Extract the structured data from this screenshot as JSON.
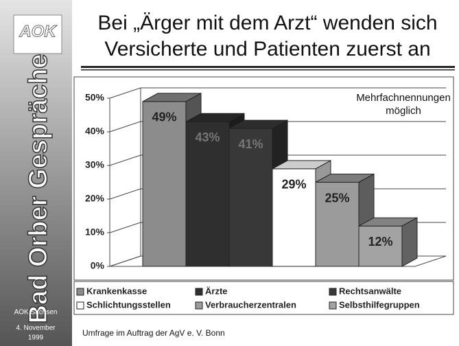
{
  "sidebar": {
    "logo": "AOK",
    "vertical_title": "Bad Orber Gespräche",
    "org": "AOK Sachsen",
    "date": [
      "4. November",
      "1999"
    ]
  },
  "title": [
    "Bei „Ärger mit dem Arzt“ wenden sich",
    "Versicherte und Patienten zuerst an"
  ],
  "footer": "Umfrage im Auftrag der AgV e. V. Bonn",
  "chart_data": {
    "type": "bar3d",
    "annotation": [
      "Mehrfachnennungen",
      "möglich"
    ],
    "categories": [
      "Krankenkasse",
      "Ärzte",
      "Rechtsanwälte",
      "Schlichtungsstellen",
      "Verbraucherzentralen",
      "Selbsthilfegruppen"
    ],
    "values": [
      49,
      43,
      41,
      29,
      25,
      12
    ],
    "value_labels": [
      "49%",
      "43%",
      "41%",
      "29%",
      "25%",
      "12%"
    ],
    "colors": [
      "#8c8c8c",
      "#2f2f2f",
      "#383838",
      "#ffffff",
      "#9b9b9b",
      "#a3a3a3"
    ],
    "ylim": [
      0,
      50
    ],
    "yticks": [
      {
        "value": 0,
        "label": "0%"
      },
      {
        "value": 10,
        "label": "10%"
      },
      {
        "value": 20,
        "label": "20%"
      },
      {
        "value": 30,
        "label": "30%"
      },
      {
        "value": 40,
        "label": "40%"
      },
      {
        "value": 50,
        "label": "50%"
      }
    ],
    "grid": true
  }
}
